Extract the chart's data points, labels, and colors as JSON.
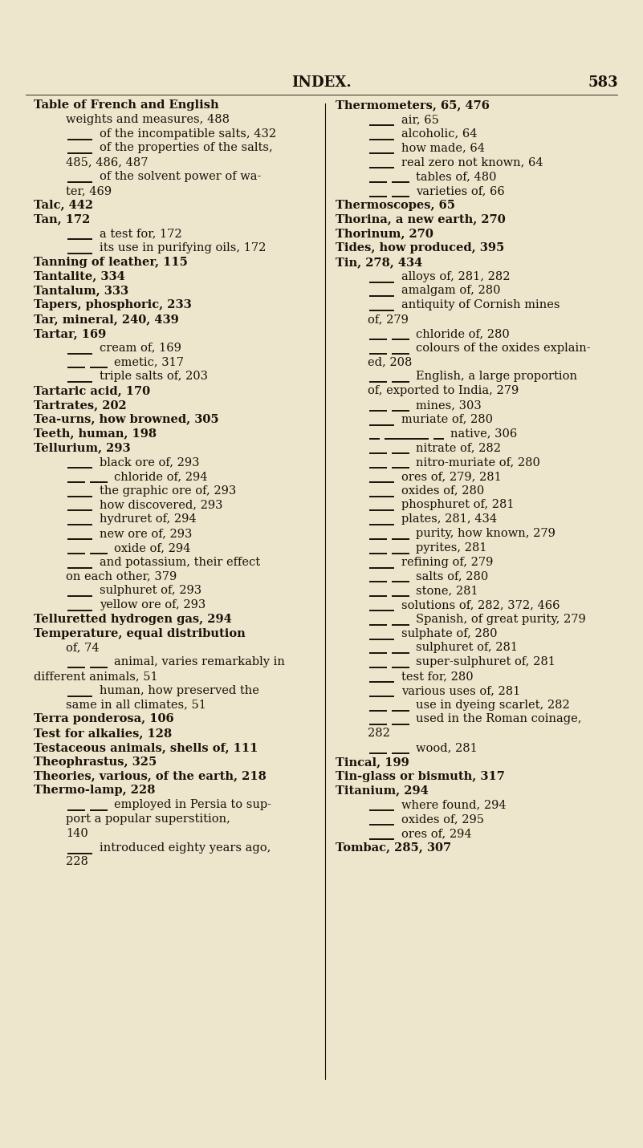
{
  "bg_color": "#ede5cc",
  "text_color": "#1c1008",
  "header_text": "INDEX.",
  "page_number": "583",
  "font_size": 10.5,
  "header_font_size": 13,
  "left_col": [
    {
      "indent": 0,
      "bold": true,
      "dash": 0,
      "text": "Table of French and English"
    },
    {
      "indent": 1,
      "bold": false,
      "dash": 0,
      "text": "weights and measures, 488"
    },
    {
      "indent": 0,
      "bold": false,
      "dash": 1,
      "text": "of the incompatible salts, 432"
    },
    {
      "indent": 0,
      "bold": false,
      "dash": 1,
      "text": "of the properties of the salts,"
    },
    {
      "indent": 1,
      "bold": false,
      "dash": 0,
      "text": "485, 486, 487"
    },
    {
      "indent": 0,
      "bold": false,
      "dash": 1,
      "text": "of the solvent power of wa-"
    },
    {
      "indent": 1,
      "bold": false,
      "dash": 0,
      "text": "ter, 469"
    },
    {
      "indent": 0,
      "bold": true,
      "dash": 0,
      "text": "Talc, 442"
    },
    {
      "indent": 0,
      "bold": true,
      "dash": 0,
      "text": "Tan, 172"
    },
    {
      "indent": 0,
      "bold": false,
      "dash": 1,
      "text": "a test for, 172"
    },
    {
      "indent": 0,
      "bold": false,
      "dash": 1,
      "text": "its use in purifying oils, 172"
    },
    {
      "indent": 0,
      "bold": true,
      "dash": 0,
      "text": "Tanning of leather, 115"
    },
    {
      "indent": 0,
      "bold": true,
      "dash": 0,
      "text": "Tantalite, 334"
    },
    {
      "indent": 0,
      "bold": true,
      "dash": 0,
      "text": "Tantalum, 333"
    },
    {
      "indent": 0,
      "bold": true,
      "dash": 0,
      "text": "Tapers, phosphoric, 233"
    },
    {
      "indent": 0,
      "bold": true,
      "dash": 0,
      "text": "Tar, mineral, 240, 439"
    },
    {
      "indent": 0,
      "bold": true,
      "dash": 0,
      "text": "Tartar, 169"
    },
    {
      "indent": 0,
      "bold": false,
      "dash": 1,
      "text": "cream of, 169"
    },
    {
      "indent": 0,
      "bold": false,
      "dash": 2,
      "text": "emetic, 317"
    },
    {
      "indent": 0,
      "bold": false,
      "dash": 1,
      "text": "triple salts of, 203"
    },
    {
      "indent": 0,
      "bold": true,
      "dash": 0,
      "text": "Tartaric acid, 170"
    },
    {
      "indent": 0,
      "bold": true,
      "dash": 0,
      "text": "Tartrates, 202"
    },
    {
      "indent": 0,
      "bold": true,
      "dash": 0,
      "text": "Tea-urns, how browned, 305"
    },
    {
      "indent": 0,
      "bold": true,
      "dash": 0,
      "text": "Teeth, human, 198"
    },
    {
      "indent": 0,
      "bold": true,
      "dash": 0,
      "text": "Tellurium, 293"
    },
    {
      "indent": 0,
      "bold": false,
      "dash": 1,
      "text": "black ore of, 293"
    },
    {
      "indent": 0,
      "bold": false,
      "dash": 2,
      "text": "chloride of, 294"
    },
    {
      "indent": 0,
      "bold": false,
      "dash": 1,
      "text": "the graphic ore of, 293"
    },
    {
      "indent": 0,
      "bold": false,
      "dash": 1,
      "text": "how discovered, 293"
    },
    {
      "indent": 0,
      "bold": false,
      "dash": 1,
      "text": "hydruret of, 294"
    },
    {
      "indent": 0,
      "bold": false,
      "dash": 1,
      "text": "new ore of, 293"
    },
    {
      "indent": 0,
      "bold": false,
      "dash": 2,
      "text": "oxide of, 294"
    },
    {
      "indent": 0,
      "bold": false,
      "dash": 1,
      "text": "and potassium, their effect"
    },
    {
      "indent": 1,
      "bold": false,
      "dash": 0,
      "text": "on each other, 379"
    },
    {
      "indent": 0,
      "bold": false,
      "dash": 1,
      "text": "sulphuret of, 293"
    },
    {
      "indent": 0,
      "bold": false,
      "dash": 1,
      "text": "yellow ore of, 293"
    },
    {
      "indent": 0,
      "bold": true,
      "dash": 0,
      "text": "Telluretted hydrogen gas, 294"
    },
    {
      "indent": 0,
      "bold": true,
      "dash": 0,
      "text": "Temperature, equal distribution"
    },
    {
      "indent": 1,
      "bold": false,
      "dash": 0,
      "text": "of, 74"
    },
    {
      "indent": 0,
      "bold": false,
      "dash": 2,
      "text": "animal, varies remarkably in"
    },
    {
      "indent": 0,
      "bold": false,
      "dash": 0,
      "text": "different animals, 51"
    },
    {
      "indent": 0,
      "bold": false,
      "dash": 1,
      "text": "human, how preserved the"
    },
    {
      "indent": 1,
      "bold": false,
      "dash": 0,
      "text": "same in all climates, 51"
    },
    {
      "indent": 0,
      "bold": true,
      "dash": 0,
      "text": "Terra ponderosa, 106"
    },
    {
      "indent": 0,
      "bold": true,
      "dash": 0,
      "text": "Test for alkalies, 128"
    },
    {
      "indent": 0,
      "bold": true,
      "dash": 0,
      "text": "Testaceous animals, shells of, 111"
    },
    {
      "indent": 0,
      "bold": true,
      "dash": 0,
      "text": "Theophrastus, 325"
    },
    {
      "indent": 0,
      "bold": true,
      "dash": 0,
      "text": "Theories, various, of the earth, 218"
    },
    {
      "indent": 0,
      "bold": true,
      "dash": 0,
      "text": "Thermo-lamp, 228"
    },
    {
      "indent": 0,
      "bold": false,
      "dash": 2,
      "text": "employed in Persia to sup-"
    },
    {
      "indent": 1,
      "bold": false,
      "dash": 0,
      "text": "port a popular superstition,"
    },
    {
      "indent": 1,
      "bold": false,
      "dash": 0,
      "text": "140"
    },
    {
      "indent": 0,
      "bold": false,
      "dash": 1,
      "text": "introduced eighty years ago,"
    },
    {
      "indent": 1,
      "bold": false,
      "dash": 0,
      "text": "228"
    }
  ],
  "right_col": [
    {
      "indent": 0,
      "bold": true,
      "dash": 0,
      "text": "Thermometers, 65, 476"
    },
    {
      "indent": 0,
      "bold": false,
      "dash": 1,
      "text": "air, 65"
    },
    {
      "indent": 0,
      "bold": false,
      "dash": 1,
      "text": "alcoholic, 64"
    },
    {
      "indent": 0,
      "bold": false,
      "dash": 1,
      "text": "how made, 64"
    },
    {
      "indent": 0,
      "bold": false,
      "dash": 1,
      "text": "real zero not known, 64"
    },
    {
      "indent": 0,
      "bold": false,
      "dash": 2,
      "text": "tables of, 480"
    },
    {
      "indent": 0,
      "bold": false,
      "dash": 2,
      "text": "varieties of, 66"
    },
    {
      "indent": 0,
      "bold": true,
      "dash": 0,
      "text": "Thermoscopes, 65"
    },
    {
      "indent": 0,
      "bold": true,
      "dash": 0,
      "text": "Thorina, a new earth, 270"
    },
    {
      "indent": 0,
      "bold": true,
      "dash": 0,
      "text": "Thorinum, 270"
    },
    {
      "indent": 0,
      "bold": true,
      "dash": 0,
      "text": "Tides, how produced, 395"
    },
    {
      "indent": 0,
      "bold": true,
      "dash": 0,
      "text": "Tin, 278, 434"
    },
    {
      "indent": 0,
      "bold": false,
      "dash": 1,
      "text": "alloys of, 281, 282"
    },
    {
      "indent": 0,
      "bold": false,
      "dash": 1,
      "text": "amalgam of, 280"
    },
    {
      "indent": 0,
      "bold": false,
      "dash": 1,
      "text": "antiquity of Cornish mines"
    },
    {
      "indent": 1,
      "bold": false,
      "dash": 0,
      "text": "of, 279"
    },
    {
      "indent": 0,
      "bold": false,
      "dash": 2,
      "text": "chloride of, 280"
    },
    {
      "indent": 0,
      "bold": false,
      "dash": 2,
      "text": "colours of the oxides explain-"
    },
    {
      "indent": 1,
      "bold": false,
      "dash": 0,
      "text": "ed, 208"
    },
    {
      "indent": 0,
      "bold": false,
      "dash": 2,
      "text": "English, a large proportion"
    },
    {
      "indent": 1,
      "bold": false,
      "dash": 0,
      "text": "of, exported to India, 279"
    },
    {
      "indent": 0,
      "bold": false,
      "dash": 2,
      "text": "mines, 303"
    },
    {
      "indent": 0,
      "bold": false,
      "dash": 1,
      "text": "muriate of, 280"
    },
    {
      "indent": 0,
      "bold": false,
      "dash": 4,
      "text": "native, 306"
    },
    {
      "indent": 0,
      "bold": false,
      "dash": 2,
      "text": "nitrate of, 282"
    },
    {
      "indent": 0,
      "bold": false,
      "dash": 2,
      "text": "nitro-muriate of, 280"
    },
    {
      "indent": 0,
      "bold": false,
      "dash": 1,
      "text": "ores of, 279, 281"
    },
    {
      "indent": 0,
      "bold": false,
      "dash": 1,
      "text": "oxides of, 280"
    },
    {
      "indent": 0,
      "bold": false,
      "dash": 1,
      "text": "phosphuret of, 281"
    },
    {
      "indent": 0,
      "bold": false,
      "dash": 1,
      "text": "plates, 281, 434"
    },
    {
      "indent": 0,
      "bold": false,
      "dash": 2,
      "text": "purity, how known, 279"
    },
    {
      "indent": 0,
      "bold": false,
      "dash": 2,
      "text": "pyrites, 281"
    },
    {
      "indent": 0,
      "bold": false,
      "dash": 1,
      "text": "refining of, 279"
    },
    {
      "indent": 0,
      "bold": false,
      "dash": 2,
      "text": "salts of, 280"
    },
    {
      "indent": 0,
      "bold": false,
      "dash": 2,
      "text": "stone, 281"
    },
    {
      "indent": 0,
      "bold": false,
      "dash": 1,
      "text": "solutions of, 282, 372, 466"
    },
    {
      "indent": 0,
      "bold": false,
      "dash": 2,
      "text": "Spanish, of great purity, 279"
    },
    {
      "indent": 0,
      "bold": false,
      "dash": 1,
      "text": "sulphate of, 280"
    },
    {
      "indent": 0,
      "bold": false,
      "dash": 2,
      "text": "sulphuret of, 281"
    },
    {
      "indent": 0,
      "bold": false,
      "dash": 2,
      "text": "super-sulphuret of, 281"
    },
    {
      "indent": 0,
      "bold": false,
      "dash": 1,
      "text": "test for, 280"
    },
    {
      "indent": 0,
      "bold": false,
      "dash": 1,
      "text": "various uses of, 281"
    },
    {
      "indent": 0,
      "bold": false,
      "dash": 2,
      "text": "use in dyeing scarlet, 282"
    },
    {
      "indent": 0,
      "bold": false,
      "dash": 2,
      "text": "used in the Roman coinage,"
    },
    {
      "indent": 1,
      "bold": false,
      "dash": 0,
      "text": "282"
    },
    {
      "indent": 0,
      "bold": false,
      "dash": 2,
      "text": "wood, 281"
    },
    {
      "indent": 0,
      "bold": true,
      "dash": 0,
      "text": "Tincal, 199"
    },
    {
      "indent": 0,
      "bold": true,
      "dash": 0,
      "text": "Tin-glass or bismuth, 317"
    },
    {
      "indent": 0,
      "bold": true,
      "dash": 0,
      "text": "Titanium, 294"
    },
    {
      "indent": 0,
      "bold": false,
      "dash": 1,
      "text": "where found, 294"
    },
    {
      "indent": 0,
      "bold": false,
      "dash": 1,
      "text": "oxides of, 295"
    },
    {
      "indent": 0,
      "bold": false,
      "dash": 1,
      "text": "ores of, 294"
    },
    {
      "indent": 0,
      "bold": true,
      "dash": 0,
      "text": "Tombac, 285, 307"
    }
  ]
}
